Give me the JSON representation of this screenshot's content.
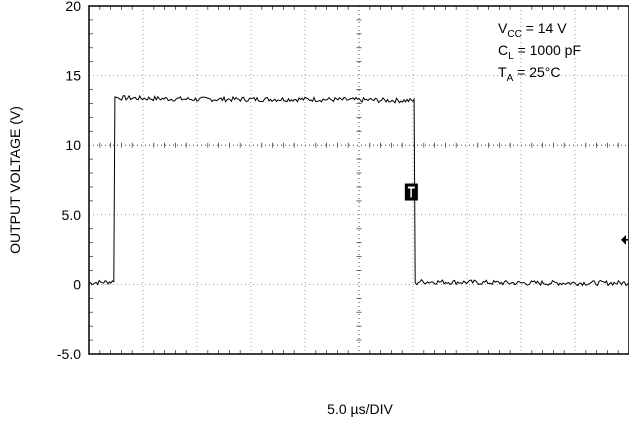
{
  "chart_data": {
    "type": "line",
    "xlabel": "5.0 µs/DIV",
    "ylabel": "OUTPUT VOLTAGE (V)",
    "ylim": [
      -5,
      20
    ],
    "xlim": [
      0,
      50
    ],
    "yticks": [
      "20",
      "15",
      "10",
      "5.0",
      "0",
      "-5.0"
    ],
    "ytick_values": [
      20,
      15,
      10,
      5,
      0,
      -5
    ],
    "grid": "dotted",
    "x_divisions": 10,
    "y_minor_per_division": 5,
    "annotations": [
      {
        "main": "V",
        "sub": "CC",
        "rest": " = 14 V"
      },
      {
        "main": "C",
        "sub": "L",
        "rest": " = 1000 pF"
      },
      {
        "main": "T",
        "sub": "A",
        "rest": " = 25°C"
      }
    ],
    "series": [
      {
        "color": "#000000",
        "points": [
          [
            0,
            0.1
          ],
          [
            2.3,
            0.2
          ],
          [
            2.4,
            13.6
          ],
          [
            2.6,
            13.4
          ],
          [
            10,
            13.3
          ],
          [
            20,
            13.3
          ],
          [
            30,
            13.2
          ],
          [
            30.1,
            13.3
          ],
          [
            30.2,
            0
          ],
          [
            30.5,
            0.2
          ],
          [
            40,
            0.1
          ],
          [
            50,
            0.1
          ]
        ]
      }
    ],
    "markers": [
      {
        "name": "trigger-level-marker",
        "x": 29.8,
        "y": 6.6
      },
      {
        "name": "reference-arrow-marker",
        "x": 50,
        "y": 3.2
      }
    ]
  }
}
